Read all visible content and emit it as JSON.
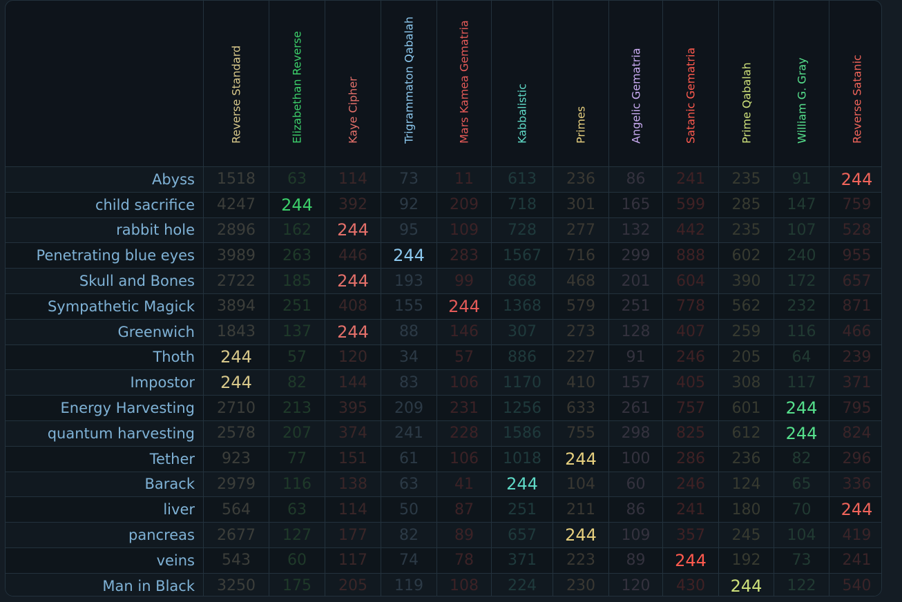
{
  "ciphers": [
    {
      "name": "Reverse Standard",
      "color": "#d8c88a",
      "dim": "#3c3e3a"
    },
    {
      "name": "Elizabethan Reverse",
      "color": "#3ccf6a",
      "dim": "#1f3a2a"
    },
    {
      "name": "Kaye Cipher",
      "color": "#e4706a",
      "dim": "#3a2628"
    },
    {
      "name": "Trigrammaton Qabalah",
      "color": "#8cc8ee",
      "dim": "#2c3a46"
    },
    {
      "name": "Mars Kamea Gematria",
      "color": "#e45a58",
      "dim": "#3c2226"
    },
    {
      "name": "Kabbalistic",
      "color": "#5fd9c6",
      "dim": "#1f3a3c"
    },
    {
      "name": "Primes",
      "color": "#e6cf7e",
      "dim": "#3a3832"
    },
    {
      "name": "Angelic Gematria",
      "color": "#c8aaf0",
      "dim": "#34323e"
    },
    {
      "name": "Satanic Gematria",
      "color": "#ff5a4e",
      "dim": "#3f2124"
    },
    {
      "name": "Prime Qabalah",
      "color": "#cde07a",
      "dim": "#373a30"
    },
    {
      "name": "William G. Gray",
      "color": "#56e08c",
      "dim": "#213a32"
    },
    {
      "name": "Reverse Satanic",
      "color": "#f0645a",
      "dim": "#3a2428"
    }
  ],
  "rows": [
    {
      "phrase": "Abyss",
      "values": [
        1518,
        63,
        114,
        73,
        11,
        613,
        236,
        86,
        241,
        235,
        91,
        244
      ]
    },
    {
      "phrase": "child sacrifice",
      "values": [
        4247,
        244,
        392,
        92,
        209,
        718,
        301,
        165,
        599,
        285,
        147,
        759
      ]
    },
    {
      "phrase": "rabbit hole",
      "values": [
        2896,
        162,
        244,
        95,
        109,
        728,
        277,
        132,
        442,
        235,
        107,
        528
      ]
    },
    {
      "phrase": "Penetrating blue eyes",
      "values": [
        3989,
        263,
        446,
        244,
        283,
        1567,
        716,
        299,
        888,
        602,
        240,
        955
      ]
    },
    {
      "phrase": "Skull and Bones",
      "values": [
        2722,
        185,
        244,
        193,
        99,
        868,
        468,
        201,
        604,
        390,
        172,
        657
      ]
    },
    {
      "phrase": "Sympathetic Magick",
      "values": [
        3894,
        251,
        408,
        155,
        244,
        1368,
        579,
        251,
        778,
        562,
        232,
        871
      ]
    },
    {
      "phrase": "Greenwich",
      "values": [
        1843,
        137,
        244,
        88,
        146,
        307,
        273,
        128,
        407,
        259,
        116,
        466
      ]
    },
    {
      "phrase": "Thoth",
      "values": [
        244,
        57,
        120,
        34,
        57,
        886,
        227,
        91,
        246,
        205,
        64,
        239
      ]
    },
    {
      "phrase": "Impostor",
      "values": [
        244,
        82,
        144,
        83,
        106,
        1170,
        410,
        157,
        405,
        308,
        117,
        371
      ]
    },
    {
      "phrase": "Energy Harvesting",
      "values": [
        2710,
        213,
        395,
        209,
        231,
        1256,
        633,
        261,
        757,
        601,
        244,
        795
      ]
    },
    {
      "phrase": "quantum harvesting",
      "values": [
        2578,
        207,
        374,
        241,
        228,
        1586,
        755,
        298,
        825,
        612,
        244,
        824
      ]
    },
    {
      "phrase": "Tether",
      "values": [
        923,
        77,
        151,
        61,
        106,
        1018,
        244,
        100,
        286,
        236,
        82,
        296
      ]
    },
    {
      "phrase": "Barack",
      "values": [
        2979,
        116,
        138,
        63,
        41,
        244,
        104,
        60,
        246,
        124,
        65,
        336
      ]
    },
    {
      "phrase": "liver",
      "values": [
        564,
        63,
        114,
        50,
        87,
        251,
        211,
        86,
        241,
        180,
        70,
        244
      ]
    },
    {
      "phrase": "pancreas",
      "values": [
        2677,
        127,
        177,
        82,
        89,
        657,
        244,
        109,
        357,
        245,
        104,
        419
      ]
    },
    {
      "phrase": "veins",
      "values": [
        543,
        60,
        117,
        74,
        78,
        371,
        223,
        89,
        244,
        192,
        73,
        241
      ]
    },
    {
      "phrase": "Man in Black",
      "values": [
        3250,
        175,
        205,
        119,
        108,
        224,
        230,
        120,
        430,
        244,
        122,
        540
      ]
    }
  ],
  "highlight_value": 244
}
